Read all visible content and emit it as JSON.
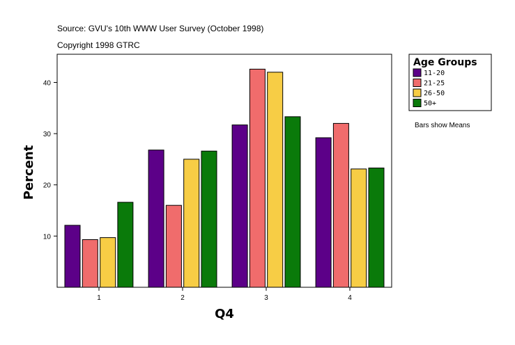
{
  "header": {
    "source": "Source: GVU's 10th WWW User Survey (October 1998)",
    "copyright": "Copyright 1998 GTRC"
  },
  "note": "Bars show Means",
  "chart_data": {
    "type": "bar",
    "categories": [
      "1",
      "2",
      "3",
      "4"
    ],
    "xlabel": "Q4",
    "ylabel": "Percent",
    "ylim": [
      0,
      45.5
    ],
    "yticks": [
      10,
      20,
      30,
      40
    ],
    "grid": false,
    "legend": {
      "title": "Age Groups",
      "position": "right"
    },
    "series": [
      {
        "name": "11-20",
        "color": "#5c0088",
        "values": [
          12.1,
          26.8,
          31.7,
          29.2
        ]
      },
      {
        "name": "21-25",
        "color": "#f06c6c",
        "values": [
          9.3,
          16.0,
          42.6,
          32.0
        ]
      },
      {
        "name": "26-50",
        "color": "#f7cd45",
        "values": [
          9.7,
          25.0,
          42.0,
          23.1
        ]
      },
      {
        "name": "50+",
        "color": "#0a7a0a",
        "values": [
          16.6,
          26.6,
          33.3,
          23.3
        ]
      }
    ]
  }
}
